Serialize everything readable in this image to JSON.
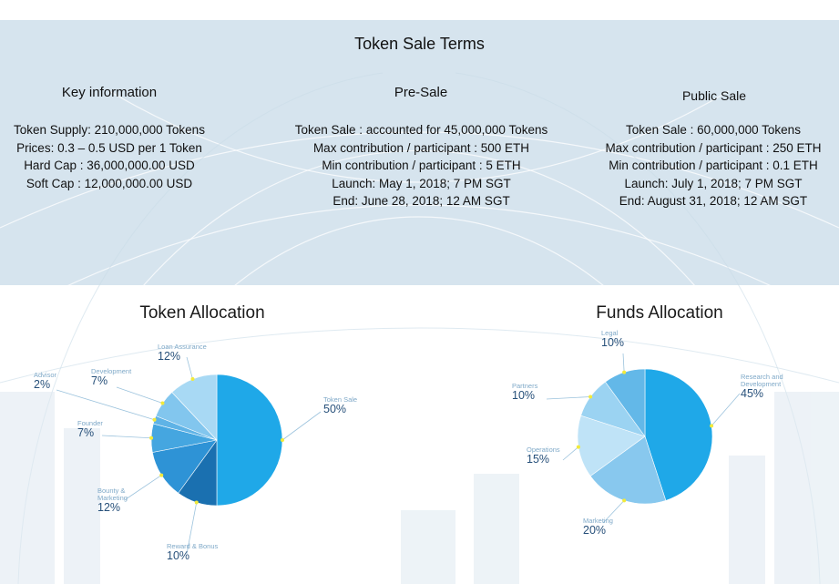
{
  "title": "Token Sale Terms",
  "key_info": {
    "title": "Key information",
    "lines": [
      "Token Supply: 210,000,000 Tokens",
      "Prices: 0.3 – 0.5 USD per 1 Token",
      "Hard Cap : 36,000,000.00 USD",
      "Soft Cap : 12,000,000.00 USD"
    ]
  },
  "pre_sale": {
    "title": "Pre-Sale",
    "lines": [
      "Token Sale : accounted for 45,000,000 Tokens",
      "Max contribution / participant : 500 ETH",
      "Min contribution / participant : 5 ETH",
      "Launch: May 1, 2018; 7 PM SGT",
      "End: June 28, 2018; 12 AM SGT"
    ]
  },
  "public_sale": {
    "title": "Public Sale",
    "lines": [
      "Token Sale : 60,000,000 Tokens",
      "Max contribution / participant : 250 ETH",
      "Min contribution / participant : 0.1 ETH",
      "Launch: July 1, 2018; 7 PM SGT",
      "End: August 31, 2018; 12 AM SGT"
    ]
  },
  "chart_data": [
    {
      "type": "pie",
      "title": "Token Allocation",
      "slices": [
        {
          "name": "Token Sale",
          "value": 50,
          "label": "50%",
          "color": "#1fa8e8"
        },
        {
          "name": "Reward & Bonus",
          "value": 10,
          "label": "10%",
          "color": "#1a70b0"
        },
        {
          "name": "Bounty & Marketing",
          "value": 12,
          "label": "12%",
          "color": "#2e93d6"
        },
        {
          "name": "Founder",
          "value": 7,
          "label": "7%",
          "color": "#45a6e0"
        },
        {
          "name": "Advisor",
          "value": 2,
          "label": "2%",
          "color": "#5fb3e6"
        },
        {
          "name": "Development",
          "value": 7,
          "label": "7%",
          "color": "#82c6ee"
        },
        {
          "name": "Loan Assurance",
          "value": 12,
          "label": "12%",
          "color": "#a8d9f4"
        }
      ]
    },
    {
      "type": "pie",
      "title": "Funds Allocation",
      "slices": [
        {
          "name": "Research and Development",
          "value": 45,
          "label": "45%",
          "color": "#1fa8e8"
        },
        {
          "name": "Marketing",
          "value": 20,
          "label": "20%",
          "color": "#88c8ee"
        },
        {
          "name": "Operations",
          "value": 15,
          "label": "15%",
          "color": "#bfe3f7"
        },
        {
          "name": "Partners",
          "value": 10,
          "label": "10%",
          "color": "#9bd3f2"
        },
        {
          "name": "Legal",
          "value": 10,
          "label": "10%",
          "color": "#63b8e8"
        }
      ]
    }
  ],
  "colors": {
    "band": "#d6e4ee",
    "leader": "#9cc3dd",
    "dot": "#f2ea3a"
  }
}
